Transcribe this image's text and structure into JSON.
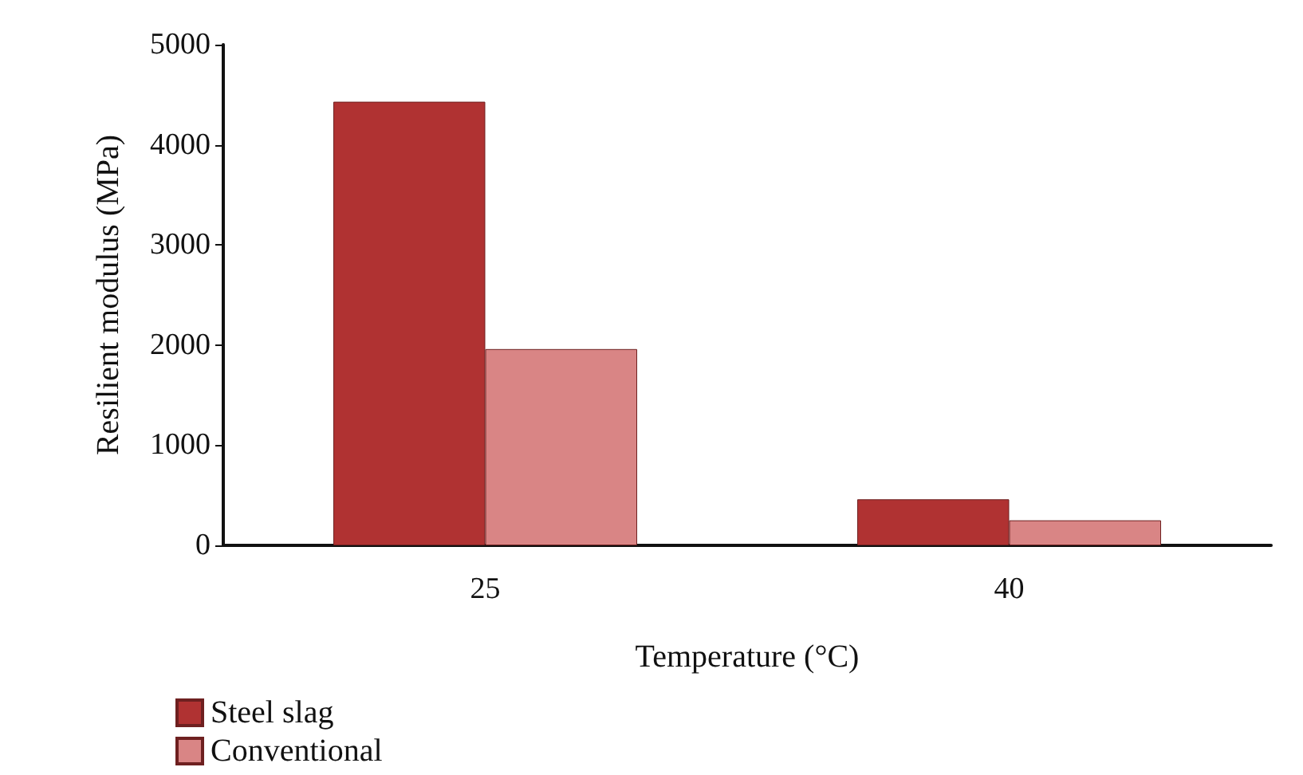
{
  "chart_data": {
    "type": "bar",
    "xlabel": "Temperature (°C)",
    "ylabel": "Resilient modulus (MPa)",
    "categories": [
      "25",
      "40"
    ],
    "series": [
      {
        "name": "Steel slag",
        "color": "#b03232",
        "values": [
          4430,
          460
        ]
      },
      {
        "name": "Conventional",
        "color": "#d98585",
        "values": [
          1960,
          250
        ]
      }
    ],
    "ylim": [
      0,
      5000
    ],
    "yticks": [
      0,
      1000,
      2000,
      3000,
      4000,
      5000
    ],
    "grid": false,
    "legend": "bottom left"
  }
}
